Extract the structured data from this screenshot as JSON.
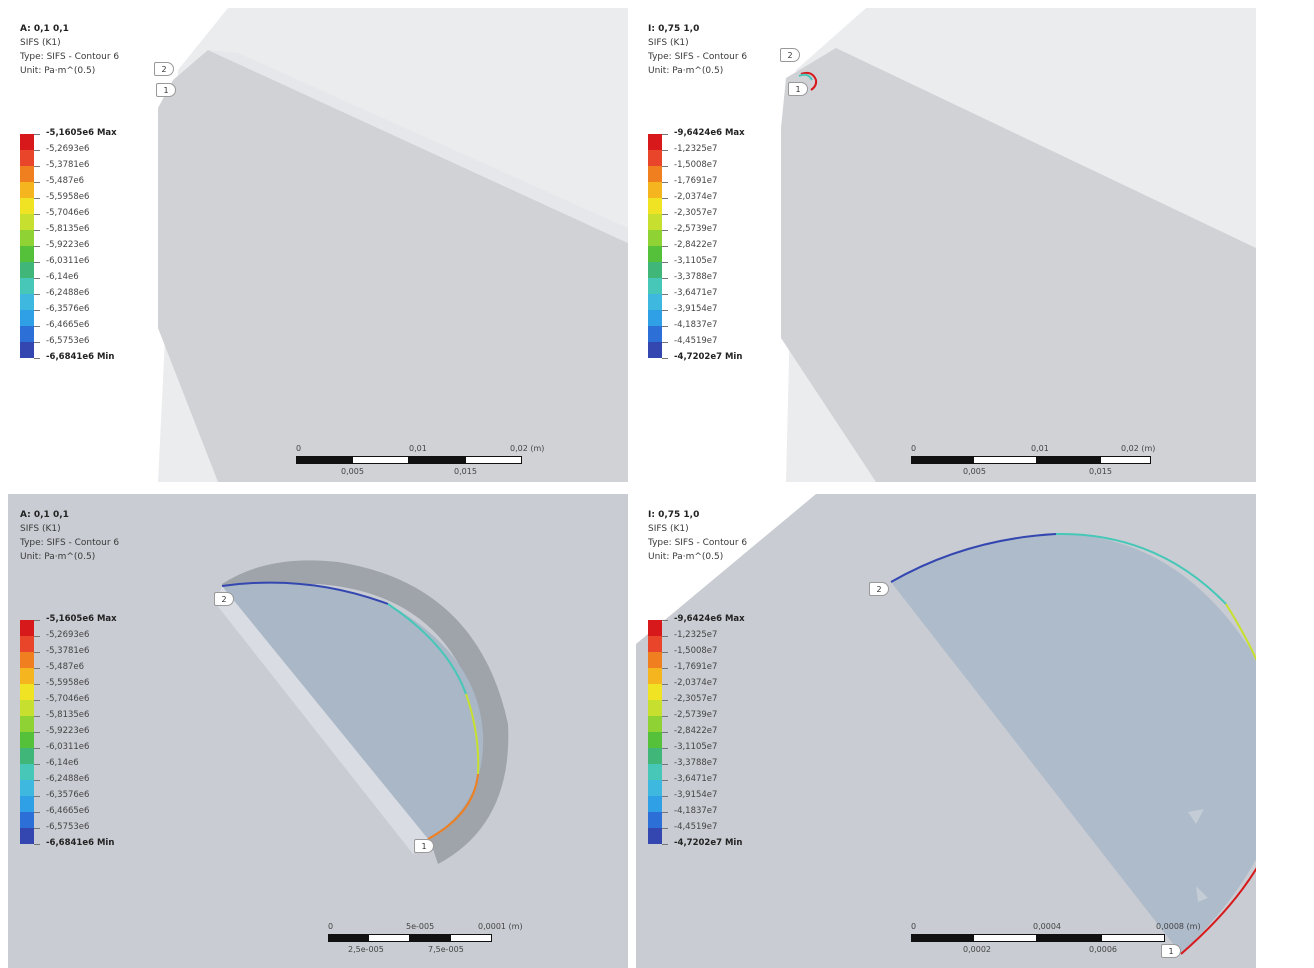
{
  "colors": [
    "#d7191c",
    "#e8452a",
    "#f07f20",
    "#f5b51e",
    "#f0e324",
    "#c7e030",
    "#8fd234",
    "#55c13a",
    "#40b679",
    "#46c7b8",
    "#3fb8e0",
    "#2f9fe6",
    "#2c6fd6",
    "#3447b0"
  ],
  "panels": [
    {
      "header": [
        "A: 0,1 0,1",
        "SIFS (K1)",
        "Type: SIFS - Contour 6",
        "Unit: Pa·m^(0.5)"
      ],
      "legend": [
        "-5,1605e6 Max",
        "-5,2693e6",
        "-5,3781e6",
        "-5,487e6",
        "-5,5958e6",
        "-5,7046e6",
        "-5,8135e6",
        "-5,9223e6",
        "-6,0311e6",
        "-6,14e6",
        "-6,2488e6",
        "-6,3576e6",
        "-6,4665e6",
        "-6,5753e6",
        "-6,6841e6 Min"
      ],
      "scale_top": [
        "0",
        "0,01",
        "0,02 (m)"
      ],
      "scale_bottom": [
        "0,005",
        "0,015"
      ],
      "points": [
        "2",
        "1"
      ]
    },
    {
      "header": [
        "I: 0,75 1,0",
        "SIFS (K1)",
        "Type: SIFS - Contour 6",
        "Unit: Pa·m^(0.5)"
      ],
      "legend": [
        "-9,6424e6 Max",
        "-1,2325e7",
        "-1,5008e7",
        "-1,7691e7",
        "-2,0374e7",
        "-2,3057e7",
        "-2,5739e7",
        "-2,8422e7",
        "-3,1105e7",
        "-3,3788e7",
        "-3,6471e7",
        "-3,9154e7",
        "-4,1837e7",
        "-4,4519e7",
        "-4,7202e7 Min"
      ],
      "scale_top": [
        "0",
        "0,01",
        "0,02 (m)"
      ],
      "scale_bottom": [
        "0,005",
        "0,015"
      ],
      "points": [
        "2",
        "1"
      ]
    },
    {
      "header": [
        "A: 0,1 0,1",
        "SIFS (K1)",
        "Type: SIFS - Contour 6",
        "Unit: Pa·m^(0.5)"
      ],
      "legend": [
        "-5,1605e6 Max",
        "-5,2693e6",
        "-5,3781e6",
        "-5,487e6",
        "-5,5958e6",
        "-5,7046e6",
        "-5,8135e6",
        "-5,9223e6",
        "-6,0311e6",
        "-6,14e6",
        "-6,2488e6",
        "-6,3576e6",
        "-6,4665e6",
        "-6,5753e6",
        "-6,6841e6 Min"
      ],
      "scale_top": [
        "0",
        "5e-005",
        "0,0001 (m)"
      ],
      "scale_bottom": [
        "2,5e-005",
        "7,5e-005"
      ],
      "points": [
        "2",
        "1"
      ]
    },
    {
      "header": [
        "I: 0,75 1,0",
        "SIFS (K1)",
        "Type: SIFS - Contour 6",
        "Unit: Pa·m^(0.5)"
      ],
      "legend": [
        "-9,6424e6 Max",
        "-1,2325e7",
        "-1,5008e7",
        "-1,7691e7",
        "-2,0374e7",
        "-2,3057e7",
        "-2,5739e7",
        "-2,8422e7",
        "-3,1105e7",
        "-3,3788e7",
        "-3,6471e7",
        "-3,9154e7",
        "-4,1837e7",
        "-4,4519e7",
        "-4,7202e7 Min"
      ],
      "scale_top": [
        "0",
        "0,0004",
        "0,0008 (m)"
      ],
      "scale_bottom": [
        "0,0002",
        "0,0006"
      ],
      "points": [
        "2",
        "1"
      ]
    }
  ]
}
